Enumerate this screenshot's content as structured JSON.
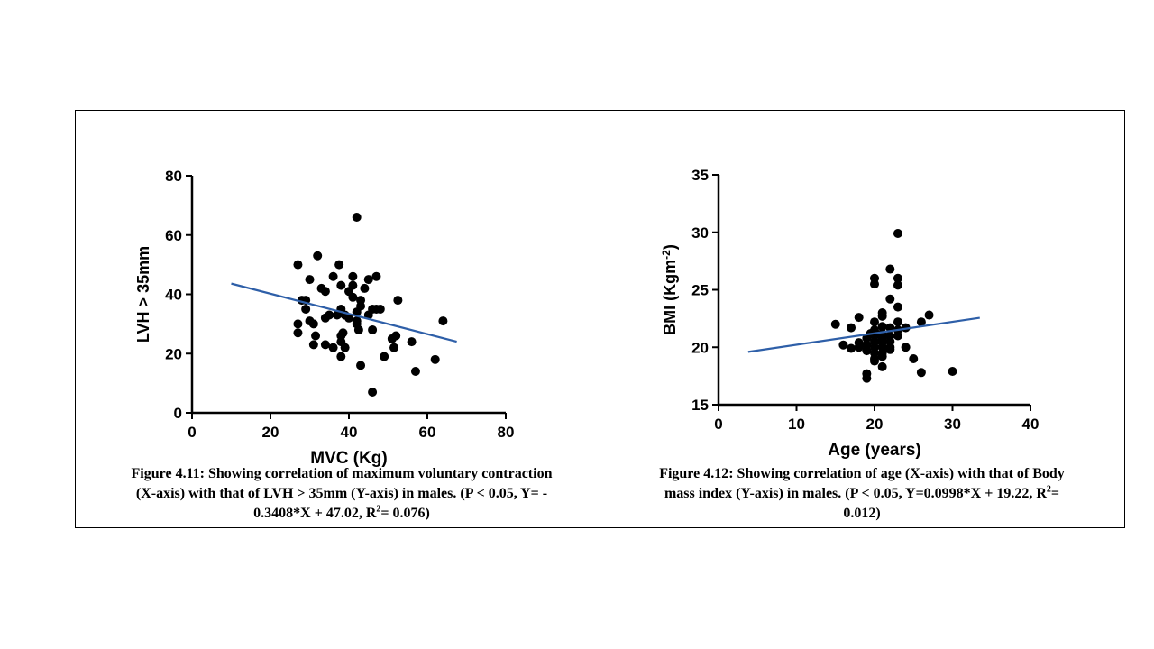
{
  "chart_data": [
    {
      "type": "scatter",
      "xlabel": "MVC (Kg)",
      "ylabel": "LVH > 35mm",
      "xlim": [
        0,
        80
      ],
      "ylim": [
        0,
        80
      ],
      "xticks": [
        0,
        20,
        40,
        60,
        80
      ],
      "yticks": [
        0,
        20,
        40,
        60,
        80
      ],
      "grid": false,
      "marker_color": "#000000",
      "line_color": "#2e5fa8",
      "points": [
        [
          27,
          50
        ],
        [
          28,
          38
        ],
        [
          29,
          38
        ],
        [
          30,
          45
        ],
        [
          30,
          31
        ],
        [
          31,
          30
        ],
        [
          31,
          23
        ],
        [
          31.5,
          26
        ],
        [
          32,
          53
        ],
        [
          33,
          42
        ],
        [
          34,
          41
        ],
        [
          34,
          32
        ],
        [
          34,
          23
        ],
        [
          35,
          33
        ],
        [
          36,
          46
        ],
        [
          36,
          22
        ],
        [
          37,
          33
        ],
        [
          37.5,
          50
        ],
        [
          38,
          43
        ],
        [
          38,
          35
        ],
        [
          38,
          26
        ],
        [
          38,
          24
        ],
        [
          38,
          19
        ],
        [
          38.5,
          27
        ],
        [
          39,
          22
        ],
        [
          39,
          33
        ],
        [
          40,
          41
        ],
        [
          40,
          32
        ],
        [
          41,
          46
        ],
        [
          41,
          39
        ],
        [
          41,
          43
        ],
        [
          42,
          66
        ],
        [
          42,
          34
        ],
        [
          42,
          30
        ],
        [
          42,
          31
        ],
        [
          42.5,
          28
        ],
        [
          43,
          38
        ],
        [
          43,
          36
        ],
        [
          43,
          16
        ],
        [
          44,
          42
        ],
        [
          45,
          45
        ],
        [
          45,
          33
        ],
        [
          46,
          7
        ],
        [
          46,
          28
        ],
        [
          46,
          35
        ],
        [
          47,
          46
        ],
        [
          47,
          35
        ],
        [
          48,
          35
        ],
        [
          49,
          19
        ],
        [
          51,
          25
        ],
        [
          51.5,
          22
        ],
        [
          52,
          26
        ],
        [
          52.5,
          38
        ],
        [
          56,
          24
        ],
        [
          57,
          14
        ],
        [
          62,
          18
        ],
        [
          64,
          31
        ],
        [
          27,
          27
        ],
        [
          27,
          30
        ],
        [
          29,
          35
        ]
      ],
      "regression": {
        "slope": -0.3408,
        "intercept": 47.02,
        "x_range": [
          10,
          67.5
        ]
      },
      "caption": {
        "line1": "Figure 4.11: Showing correlation of maximum  voluntary contraction",
        "line2": "(X-axis) with that of LVH > 35mm (Y-axis) in males. (P < 0.05, Y= -",
        "line3_pre": "0.3408*X + 47.02, R",
        "sup": "2",
        "line3_post": "= 0.076)"
      }
    },
    {
      "type": "scatter",
      "xlabel": "Age (years)",
      "ylabel_pre": "BMI (Kgm",
      "ylabel_sup": "-2",
      "ylabel_post": ")",
      "xlim": [
        0,
        40
      ],
      "ylim": [
        15,
        35
      ],
      "xticks": [
        0,
        10,
        20,
        30,
        40
      ],
      "yticks": [
        15,
        20,
        25,
        30,
        35
      ],
      "grid": false,
      "marker_color": "#000000",
      "line_color": "#2e5fa8",
      "points": [
        [
          15,
          22
        ],
        [
          16,
          20.2
        ],
        [
          17,
          19.9
        ],
        [
          17,
          21.7
        ],
        [
          18,
          20.4
        ],
        [
          18,
          20
        ],
        [
          18,
          22.6
        ],
        [
          19,
          20.8
        ],
        [
          19,
          20.2
        ],
        [
          19,
          19.7
        ],
        [
          19,
          17.7
        ],
        [
          19,
          17.3
        ],
        [
          19.5,
          21.2
        ],
        [
          20,
          26
        ],
        [
          20,
          25.5
        ],
        [
          20,
          22.2
        ],
        [
          20,
          21.5
        ],
        [
          20,
          21
        ],
        [
          20,
          20.5
        ],
        [
          20,
          20
        ],
        [
          20,
          19.5
        ],
        [
          20,
          19
        ],
        [
          20,
          18.8
        ],
        [
          21,
          23
        ],
        [
          21,
          22.7
        ],
        [
          21,
          21.8
        ],
        [
          21,
          21.2
        ],
        [
          21,
          20.8
        ],
        [
          21,
          20.4
        ],
        [
          21,
          20
        ],
        [
          21,
          19.5
        ],
        [
          21,
          19.2
        ],
        [
          21,
          18.3
        ],
        [
          22,
          26.8
        ],
        [
          22,
          24.2
        ],
        [
          22,
          21.7
        ],
        [
          22,
          21
        ],
        [
          22,
          20.5
        ],
        [
          22,
          20
        ],
        [
          22,
          19.8
        ],
        [
          23,
          29.9
        ],
        [
          23,
          26
        ],
        [
          23,
          25.4
        ],
        [
          23,
          23.5
        ],
        [
          23,
          22.2
        ],
        [
          23,
          21.5
        ],
        [
          23,
          21
        ],
        [
          24,
          21.7
        ],
        [
          24,
          20
        ],
        [
          25,
          19
        ],
        [
          26,
          22.2
        ],
        [
          26,
          17.8
        ],
        [
          27,
          22.8
        ],
        [
          30,
          17.9
        ]
      ],
      "regression": {
        "slope": 0.0998,
        "intercept": 19.22,
        "x_range": [
          3.8,
          33.5
        ]
      },
      "caption": {
        "line1": "Figure 4.12: Showing correlation of age (X-axis) with that of Body",
        "line2_pre": "mass index (Y-axis) in males. (P < 0.05, Y=0.0998*X + 19.22, R",
        "sup": "2",
        "line2_post": "=",
        "line3": "0.012)"
      }
    }
  ]
}
